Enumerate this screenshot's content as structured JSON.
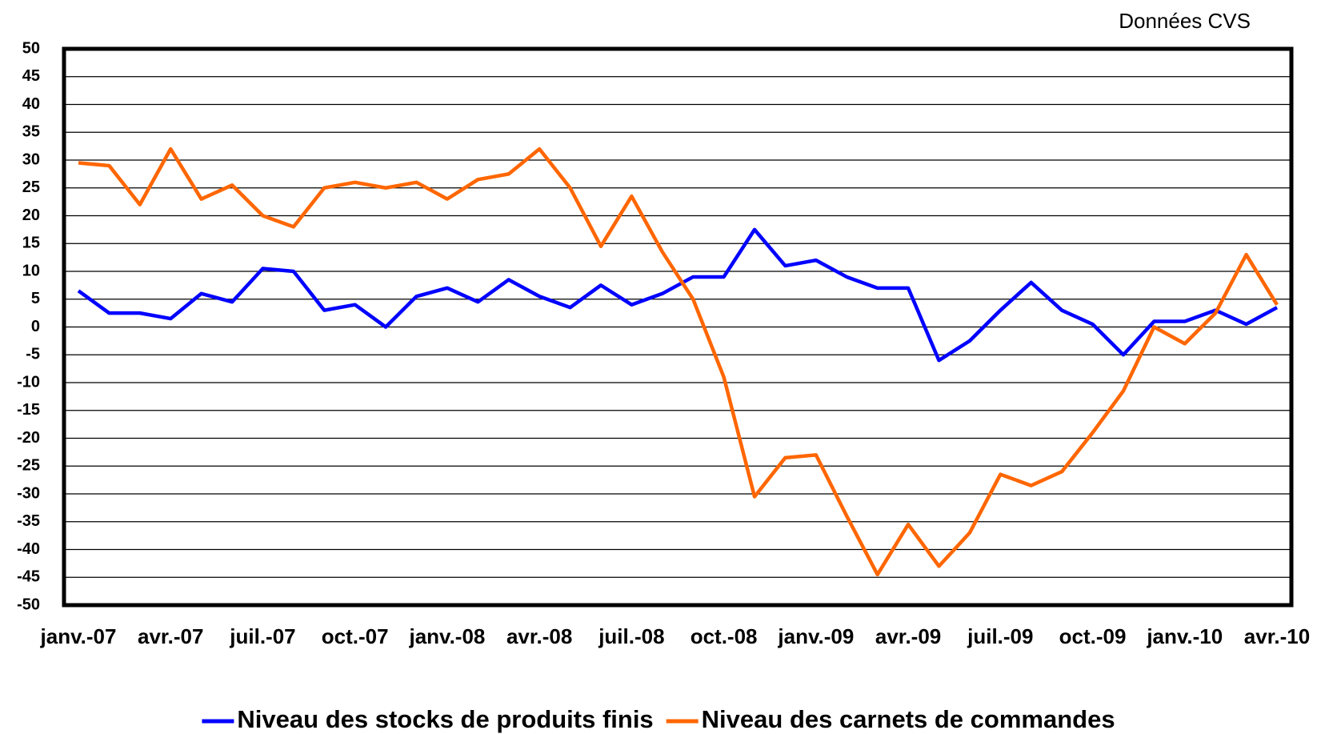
{
  "chart_data": {
    "type": "line",
    "annotation": "Données CVS",
    "categories": [
      "janv.-07",
      null,
      null,
      "avr.-07",
      null,
      null,
      "juil.-07",
      null,
      null,
      "oct.-07",
      null,
      null,
      "janv.-08",
      null,
      null,
      "avr.-08",
      null,
      null,
      "juil.-08",
      null,
      null,
      "oct.-08",
      null,
      null,
      "janv.-09",
      null,
      null,
      "avr.-09",
      null,
      null,
      "juil.-09",
      null,
      null,
      "oct.-09",
      null,
      null,
      "janv.-10",
      null,
      null,
      "avr.-10"
    ],
    "series": [
      {
        "name": "Niveau des stocks de produits finis",
        "color": "#0000ff",
        "values": [
          6.5,
          2.5,
          2.5,
          1.5,
          6,
          4.5,
          10.5,
          10,
          3,
          4,
          0,
          5.5,
          7,
          4.5,
          8.5,
          5.5,
          3.5,
          7.5,
          4,
          6,
          9,
          9,
          17.5,
          11,
          12,
          9,
          7,
          7,
          -6,
          -2.5,
          3,
          8,
          3,
          0.5,
          -5,
          1,
          1,
          3,
          0.5,
          3.5
        ]
      },
      {
        "name": "Niveau des carnets de commandes",
        "color": "#ff6600",
        "values": [
          29.5,
          29,
          22,
          32,
          23,
          25.5,
          20,
          18,
          25,
          26,
          25,
          26,
          23,
          26.5,
          27.5,
          32,
          25,
          14.5,
          23.5,
          13.5,
          5,
          -9,
          -30.5,
          -23.5,
          -23,
          -34,
          -44.5,
          -35.5,
          -43,
          -37,
          -26.5,
          -28.5,
          -26,
          -19,
          -11.5,
          0,
          -3,
          2.5,
          13,
          4
        ]
      }
    ],
    "ylim": [
      -50,
      50
    ],
    "yticks": [
      -50,
      -45,
      -40,
      -35,
      -30,
      -25,
      -20,
      -15,
      -10,
      -5,
      0,
      5,
      10,
      15,
      20,
      25,
      30,
      35,
      40,
      45,
      50
    ],
    "grid": true
  }
}
